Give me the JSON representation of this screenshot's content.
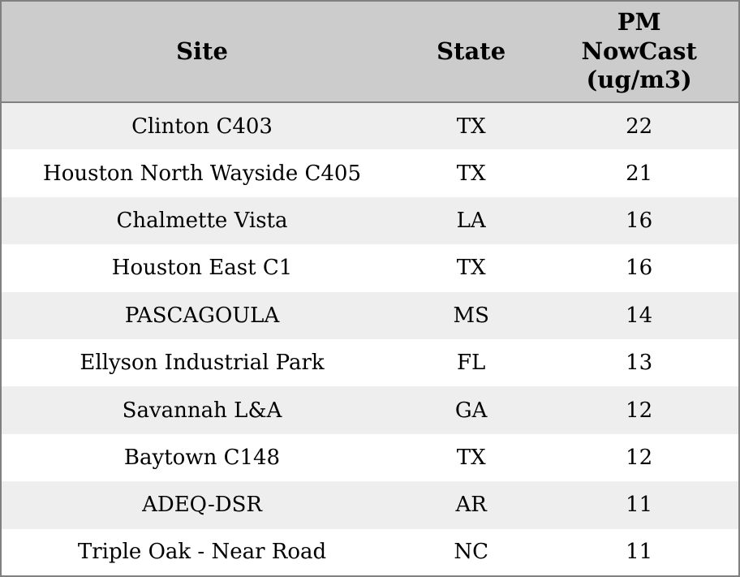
{
  "colors": {
    "header_bg": "#cccccc",
    "row_alt_bg": "#eeeeee",
    "row_bg": "#ffffff",
    "border": "#808080",
    "text": "#000000"
  },
  "chart_data": {
    "type": "table",
    "columns": [
      {
        "label": "Site"
      },
      {
        "label": "State"
      },
      {
        "label": "PM\nNowCast\n(ug/m3)"
      }
    ],
    "rows": [
      {
        "site": "Clinton C403",
        "state": "TX",
        "pm_nowcast": "22"
      },
      {
        "site": "Houston North Wayside C405",
        "state": "TX",
        "pm_nowcast": "21"
      },
      {
        "site": "Chalmette Vista",
        "state": "LA",
        "pm_nowcast": "16"
      },
      {
        "site": "Houston East C1",
        "state": "TX",
        "pm_nowcast": "16"
      },
      {
        "site": "PASCAGOULA",
        "state": "MS",
        "pm_nowcast": "14"
      },
      {
        "site": "Ellyson Industrial Park",
        "state": "FL",
        "pm_nowcast": "13"
      },
      {
        "site": "Savannah L&A",
        "state": "GA",
        "pm_nowcast": "12"
      },
      {
        "site": "Baytown C148",
        "state": "TX",
        "pm_nowcast": "12"
      },
      {
        "site": "ADEQ-DSR",
        "state": "AR",
        "pm_nowcast": "11"
      },
      {
        "site": "Triple Oak - Near Road",
        "state": "NC",
        "pm_nowcast": "11"
      }
    ]
  }
}
